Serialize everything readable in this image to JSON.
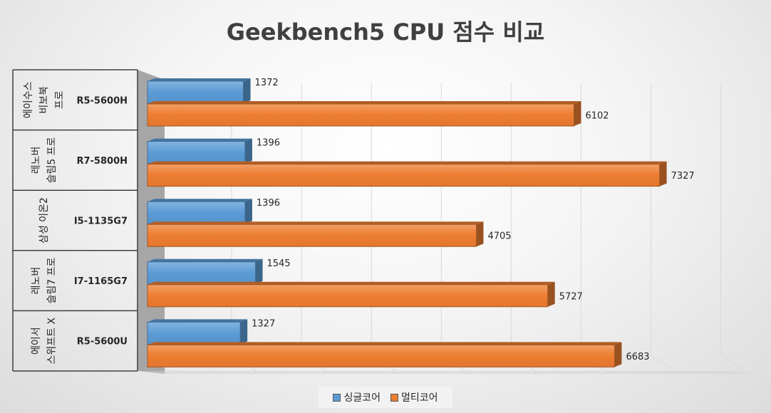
{
  "chart_data": {
    "type": "bar",
    "orientation": "horizontal",
    "title": "Geekbench5 CPU 점수 비교",
    "categories": [
      {
        "group": [
          "에이수스",
          "비보북",
          "프로"
        ],
        "cpu": "R5-5600H"
      },
      {
        "group": [
          "레노버",
          "슬림5 프로"
        ],
        "cpu": "R7-5800H"
      },
      {
        "group": [
          "삼성 이온2"
        ],
        "cpu": "I5-1135G7"
      },
      {
        "group": [
          "레노버",
          "슬림7 프로"
        ],
        "cpu": "I7-1165G7"
      },
      {
        "group": [
          "에이서",
          "스위프트 X"
        ],
        "cpu": "R5-5600U"
      }
    ],
    "series": [
      {
        "name": "싱글코어",
        "color": "#5b9bd5",
        "values": [
          1372,
          1396,
          1396,
          1545,
          1327
        ]
      },
      {
        "name": "멀티코어",
        "color": "#ed7d31",
        "values": [
          6102,
          7327,
          4705,
          5727,
          6683
        ]
      }
    ],
    "xlim": [
      0,
      8000
    ],
    "grid": true,
    "legend_position": "bottom"
  }
}
